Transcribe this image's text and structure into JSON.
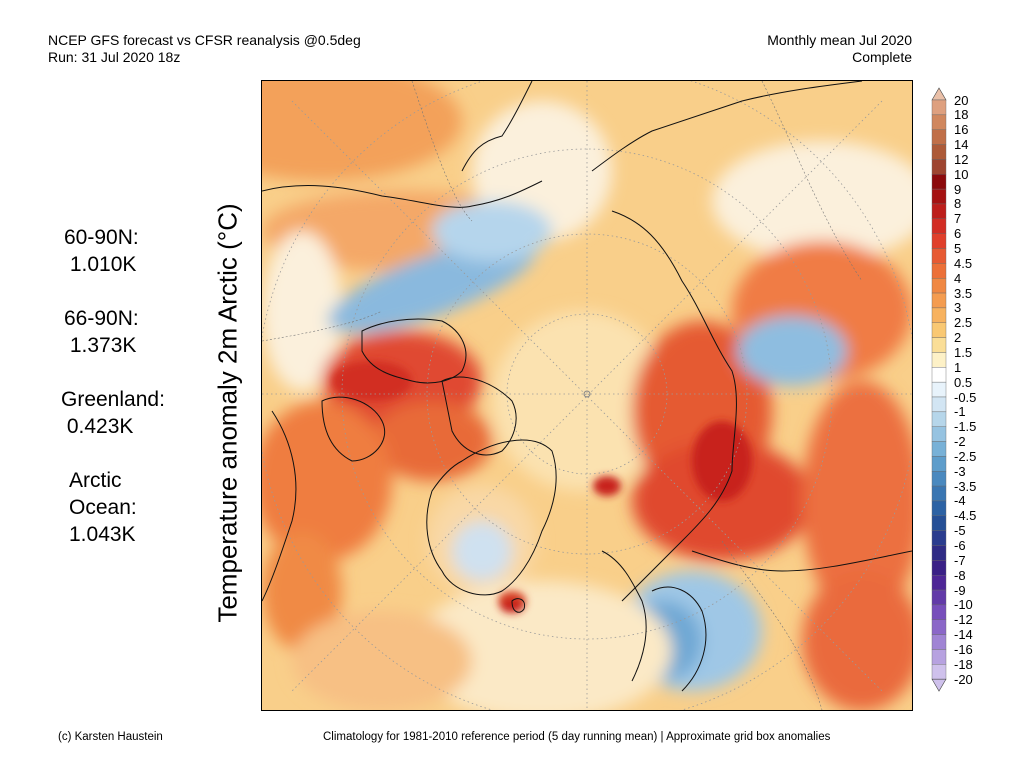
{
  "header": {
    "left_line1": "NCEP GFS forecast vs CFSR reanalysis @0.5deg",
    "left_line2": "Run: 31 Jul 2020 18z",
    "right_line1": "Monthly mean Jul 2020",
    "right_line2": "Complete"
  },
  "stats": [
    {
      "label": "60-90N:",
      "value": "1.010K"
    },
    {
      "label": "66-90N:",
      "value": "1.373K"
    },
    {
      "label": "Greenland:",
      "value": "0.423K"
    },
    {
      "label_line1": "Arctic",
      "label_line2": "Ocean:",
      "value": "1.043K"
    }
  ],
  "y_axis_label": "Temperature anomaly 2m Arctic (°C)",
  "legend": {
    "levels": [
      "20",
      "18",
      "16",
      "14",
      "12",
      "10",
      "9",
      "8",
      "7",
      "6",
      "5",
      "4.5",
      "4",
      "3.5",
      "3",
      "2.5",
      "2",
      "1.5",
      "1",
      "0.5",
      "-0.5",
      "-1",
      "-1.5",
      "-2",
      "-2.5",
      "-3",
      "-3.5",
      "-4",
      "-4.5",
      "-5",
      "-6",
      "-7",
      "-8",
      "-9",
      "-10",
      "-12",
      "-14",
      "-16",
      "-18",
      "-20"
    ],
    "colors": [
      "#eac0a8",
      "#dea07f",
      "#d0875e",
      "#c06f48",
      "#ad5a38",
      "#9e4530",
      "#8c0a0c",
      "#a51212",
      "#bd1e1b",
      "#d22d24",
      "#e03f2b",
      "#e75a33",
      "#ec7038",
      "#f08843",
      "#f49c50",
      "#f7b25f",
      "#f9c873",
      "#fade97",
      "#fdf1c7",
      "#ffffff",
      "#e8f3fb",
      "#d2e5f3",
      "#b6d6ea",
      "#96c3e1",
      "#78b1d7",
      "#5e9dcb",
      "#4a89bf",
      "#3a76b2",
      "#2c62a4",
      "#254f96",
      "#2a3c8e",
      "#2f2b85",
      "#3a2086",
      "#4e2696",
      "#623aa8",
      "#774ebb",
      "#8b67c8",
      "#a084d4",
      "#b7a2e0",
      "#cfc1ec"
    ]
  },
  "footer": {
    "left": "(c) Karsten Haustein",
    "right": "Climatology for 1981-2010 reference period (5 day running mean) | Approximate grid box anomalies"
  }
}
